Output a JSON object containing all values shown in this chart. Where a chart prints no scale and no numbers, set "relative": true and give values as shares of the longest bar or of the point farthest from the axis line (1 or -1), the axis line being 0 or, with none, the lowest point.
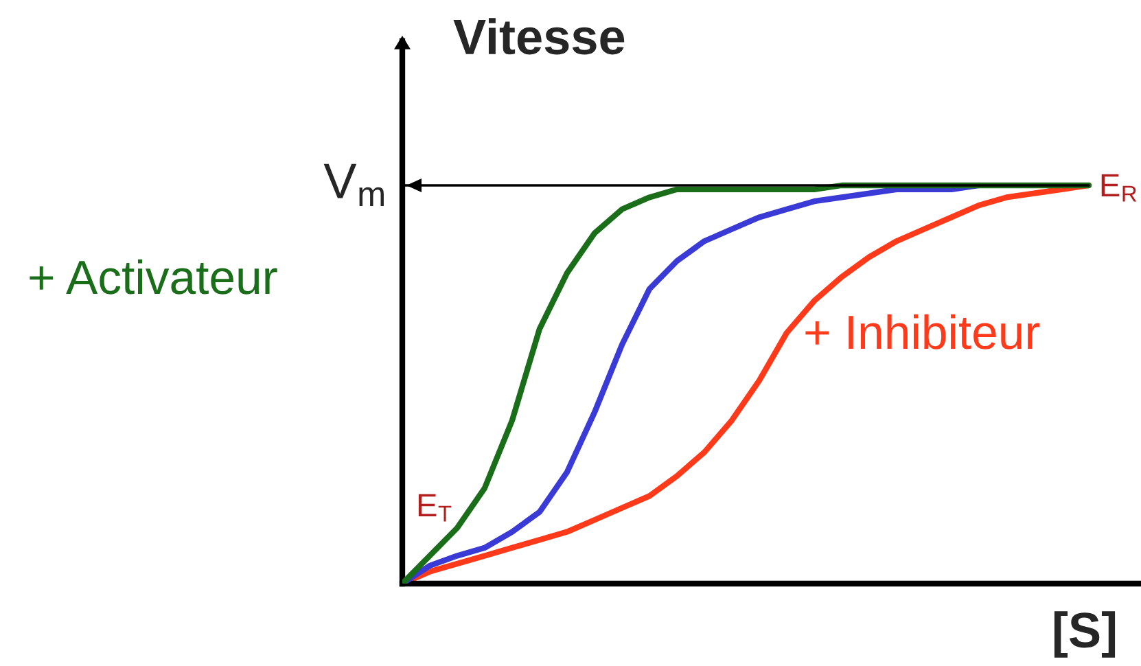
{
  "chart_data": {
    "type": "line",
    "relative": true,
    "xlabel": "[S]",
    "ylabel": "Vitesse",
    "categories": [
      null,
      null,
      null,
      null,
      null,
      null,
      null,
      null,
      null,
      null,
      null,
      null,
      null,
      null,
      null,
      null,
      null,
      null,
      null,
      null,
      null,
      null,
      null,
      null,
      null,
      null
    ],
    "series": [
      {
        "name": "+ Activateur",
        "color": "#1a6e1a",
        "values": [
          0,
          0.07,
          0.14,
          0.24,
          0.41,
          0.64,
          0.78,
          0.88,
          0.94,
          0.97,
          0.99,
          0.99,
          0.99,
          0.99,
          0.99,
          0.99,
          1.0,
          1.0,
          1.0,
          1.0,
          1.0,
          1.0,
          1.0,
          1.0,
          1.0,
          1.0
        ]
      },
      {
        "color": "#3a3ad6",
        "values": [
          0,
          0.045,
          0.07,
          0.09,
          0.13,
          0.18,
          0.28,
          0.43,
          0.6,
          0.74,
          0.81,
          0.86,
          0.89,
          0.92,
          0.94,
          0.96,
          0.97,
          0.98,
          0.99,
          0.99,
          0.99,
          1.0,
          null,
          null,
          null,
          null
        ]
      },
      {
        "name": "+ Inhibiteur",
        "color": "#ff3a1a",
        "values": [
          0,
          0.03,
          0.05,
          0.07,
          0.09,
          0.11,
          0.13,
          0.16,
          0.19,
          0.22,
          0.27,
          0.33,
          0.41,
          0.51,
          0.63,
          0.71,
          0.77,
          0.82,
          0.86,
          0.89,
          0.92,
          0.95,
          0.97,
          0.98,
          0.99,
          1.0
        ]
      }
    ],
    "ref_lines": [
      {
        "axis": "y",
        "value": 1,
        "label": "V$_{m}$",
        "color": "#000000"
      }
    ],
    "annotations": [
      "E$_{T}$",
      "E$_{R}$"
    ],
    "grid": false,
    "legend": false
  }
}
